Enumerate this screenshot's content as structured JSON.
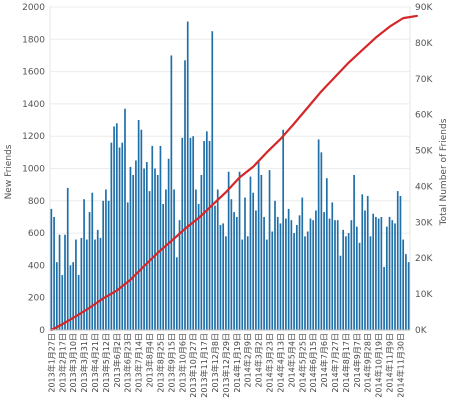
{
  "chart_data": {
    "type": "bar",
    "combo": true,
    "ylabel_left": "New Friends",
    "ylabel_right": "Total Number of Friends",
    "yticks_left": [
      "0",
      "200",
      "400",
      "600",
      "800",
      "1000",
      "1200",
      "1400",
      "1600",
      "1800",
      "2000"
    ],
    "ylim_left": [
      0,
      2000
    ],
    "yticks_right": [
      "0K",
      "10K",
      "20K",
      "30K",
      "40K",
      "50K",
      "60K",
      "70K",
      "80K",
      "90K"
    ],
    "ylim_right": [
      0,
      90000
    ],
    "x_tick_labels": [
      "2013年1月27日",
      "2013年2月17日",
      "2013年3月10日",
      "2013年3月31日",
      "2013年4月21日",
      "2013年5月12日",
      "2013年6月2日",
      "2013年6月23日",
      "2013年7月14日",
      "2013年8月4日",
      "2013年8月25日",
      "2013年9月15日",
      "2013年10月6日",
      "2013年10月27日",
      "2013年11月17日",
      "2013年12月8日",
      "2013年12月29日",
      "2014年1月19日",
      "2014年2月9日",
      "2014年3月2日",
      "2014年3月23日",
      "2014年4月13日",
      "2014年5月4日",
      "2014年5月25日",
      "2014年6月15日",
      "2014年7月6日",
      "2014年7月27日",
      "2014年8月17日",
      "2014年9月7日",
      "2014年9月28日",
      "2014年10月19日",
      "2014年11月9日",
      "2014年11月30日"
    ],
    "bar_color": "#1f6fa8",
    "line_color": "#d62728",
    "series": [
      {
        "name": "New Friends",
        "axis": "left",
        "values": [
          750,
          700,
          420,
          590,
          340,
          590,
          880,
          400,
          420,
          560,
          340,
          570,
          810,
          560,
          730,
          850,
          560,
          620,
          570,
          800,
          870,
          800,
          1160,
          1260,
          1280,
          1130,
          1160,
          1370,
          790,
          1010,
          960,
          1050,
          1300,
          1240,
          1000,
          1040,
          860,
          1140,
          1000,
          960,
          1140,
          780,
          870,
          1060,
          1700,
          870,
          450,
          680,
          1190,
          1670,
          1910,
          1190,
          1200,
          870,
          780,
          960,
          1170,
          1230,
          1170,
          1850,
          770,
          870,
          650,
          660,
          580,
          980,
          810,
          730,
          700,
          980,
          560,
          820,
          580,
          950,
          850,
          740,
          1040,
          960,
          700,
          560,
          990,
          610,
          800,
          700,
          660,
          1240,
          690,
          750,
          680,
          600,
          650,
          710,
          820,
          580,
          610,
          690,
          680,
          740,
          1180,
          1100,
          730,
          940,
          690,
          790,
          680,
          680,
          460,
          620,
          580,
          600,
          680,
          960,
          640,
          540,
          840,
          740,
          830,
          580,
          720,
          700,
          690,
          700,
          390,
          640,
          700,
          680,
          660,
          860,
          830,
          560,
          470,
          420
        ]
      },
      {
        "name": "Total Number of Friends",
        "axis": "right",
        "type": "line",
        "points": [
          [
            0,
            0
          ],
          [
            4,
            1600
          ],
          [
            9,
            3800
          ],
          [
            14,
            6200
          ],
          [
            19,
            8800
          ],
          [
            24,
            11000
          ],
          [
            29,
            14000
          ],
          [
            34,
            17800
          ],
          [
            39,
            21500
          ],
          [
            44,
            24800
          ],
          [
            49,
            28200
          ],
          [
            54,
            31200
          ],
          [
            59,
            34800
          ],
          [
            64,
            38400
          ],
          [
            69,
            42500
          ],
          [
            74,
            45500
          ],
          [
            79,
            49500
          ],
          [
            84,
            53200
          ],
          [
            89,
            57500
          ],
          [
            94,
            62000
          ],
          [
            99,
            66500
          ],
          [
            104,
            70500
          ],
          [
            109,
            74500
          ],
          [
            114,
            78000
          ],
          [
            119,
            81500
          ],
          [
            124,
            84500
          ],
          [
            129,
            86900
          ],
          [
            134,
            87500
          ]
        ]
      }
    ]
  }
}
